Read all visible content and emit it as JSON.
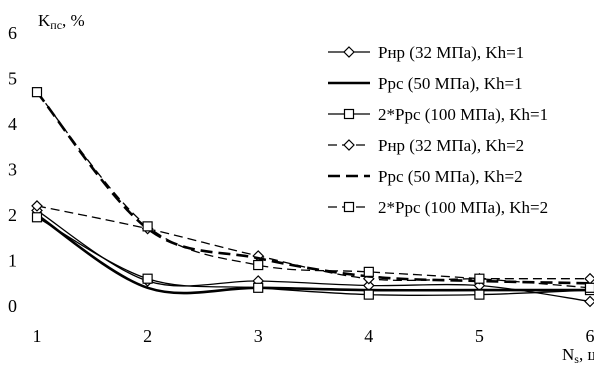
{
  "chart_data": {
    "type": "line",
    "title": "",
    "ylabel": "Kпс, %",
    "xlabel": "Ns, шт.",
    "x": [
      1,
      2,
      3,
      4,
      5,
      6
    ],
    "xlim": [
      1,
      6
    ],
    "ylim": [
      0,
      6
    ],
    "x_ticks": [
      "1",
      "2",
      "3",
      "4",
      "5",
      "6"
    ],
    "y_ticks": [
      "0",
      "1",
      "2",
      "3",
      "4",
      "5",
      "6"
    ],
    "grid": false,
    "legend_position": "top-right",
    "series": [
      {
        "name": "Pнр (32 МПа), Kh=1",
        "style": "solid-thin",
        "marker": "diamond",
        "values": [
          2.1,
          0.55,
          0.55,
          0.45,
          0.45,
          0.1
        ]
      },
      {
        "name": "Ppc (50 МПа), Kh=1",
        "style": "solid-thick",
        "marker": "none",
        "values": [
          2.0,
          0.4,
          0.4,
          0.35,
          0.35,
          0.35
        ]
      },
      {
        "name": "2*Ppc (100 МПа), Kh=1",
        "style": "solid-thin",
        "marker": "square",
        "values": [
          1.95,
          0.6,
          0.4,
          0.25,
          0.25,
          0.35
        ]
      },
      {
        "name": "Pнр (32 МПа), Kh=2",
        "style": "dashed-thin",
        "marker": "diamond",
        "values": [
          2.2,
          1.7,
          1.1,
          0.6,
          0.6,
          0.6
        ]
      },
      {
        "name": "Ppc (50 МПа), Kh=2",
        "style": "dashed-thick",
        "marker": "none",
        "values": [
          4.7,
          1.7,
          1.05,
          0.65,
          0.55,
          0.5
        ]
      },
      {
        "name": "2*Ppc (100 МПа), Kh=2",
        "style": "dashed-thin",
        "marker": "square",
        "values": [
          4.7,
          1.75,
          0.9,
          0.75,
          0.6,
          0.4
        ]
      }
    ]
  }
}
